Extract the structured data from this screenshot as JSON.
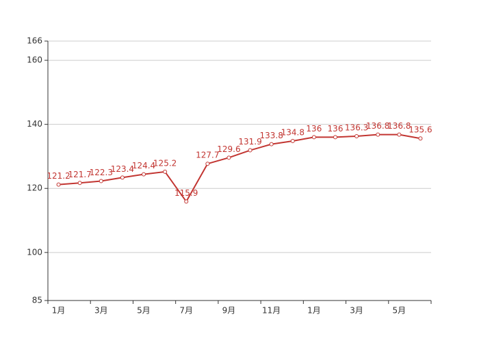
{
  "chart_data": {
    "type": "line",
    "categories": [
      "1月",
      null,
      "3月",
      null,
      "5月",
      null,
      "7月",
      null,
      "9月",
      null,
      "11月",
      null,
      "1月",
      null,
      "3月",
      null,
      "5月",
      null
    ],
    "series": [
      {
        "color": "#c23531",
        "values": [
          121.2,
          121.7,
          122.3,
          123.4,
          124.4,
          125.2,
          115.9,
          127.7,
          129.6,
          131.9,
          133.8,
          134.8,
          136,
          136,
          136.3,
          136.8,
          136.8,
          135.6
        ]
      }
    ],
    "ylim": [
      85,
      166
    ],
    "yticks": [
      85,
      100,
      120,
      140,
      160,
      166
    ],
    "grid": true
  }
}
